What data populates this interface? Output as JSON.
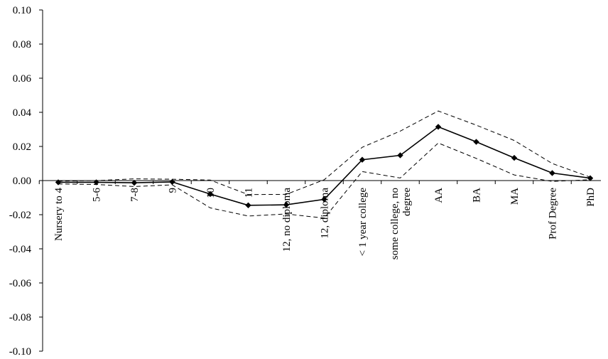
{
  "chart_data": {
    "type": "line",
    "title": "",
    "xlabel": "",
    "ylabel": "",
    "ylim": [
      -0.1,
      0.1
    ],
    "y_ticks": [
      "0.10",
      "0.08",
      "0.06",
      "0.04",
      "0.02",
      "0.00",
      "-0.02",
      "-0.04",
      "-0.06",
      "-0.08",
      "-0.10"
    ],
    "y_tick_values": [
      0.1,
      0.08,
      0.06,
      0.04,
      0.02,
      0.0,
      -0.02,
      -0.04,
      -0.06,
      -0.08,
      -0.1
    ],
    "categories": [
      "Nursery to 4",
      "5-6",
      "7-8",
      "9",
      "10",
      "11",
      "12, no diploma",
      "12, diploma",
      "< 1 year college",
      "some college, no degree",
      "AA",
      "BA",
      "MA",
      "Prof Degree",
      "PhD"
    ],
    "series": [
      {
        "style": "solid-with-diamonds",
        "color": "#000000",
        "values": [
          -0.001,
          -0.001,
          -0.0013,
          -0.0008,
          -0.0079,
          -0.0145,
          -0.0142,
          -0.011,
          0.0122,
          0.0148,
          0.0315,
          0.0227,
          0.0133,
          0.0044,
          0.0014
        ]
      },
      {
        "style": "dashed",
        "color": "#000000",
        "values": [
          -0.0003,
          0.0,
          0.001,
          0.0008,
          0.0003,
          -0.0082,
          -0.0081,
          0.0005,
          0.0195,
          0.029,
          0.0408,
          0.0325,
          0.0235,
          0.01,
          0.002
        ]
      },
      {
        "style": "dashed",
        "color": "#000000",
        "values": [
          -0.002,
          -0.0023,
          -0.0035,
          -0.0025,
          -0.016,
          -0.0208,
          -0.0196,
          -0.022,
          0.0053,
          0.0015,
          0.022,
          0.013,
          0.0033,
          -0.0005,
          0.0005
        ]
      }
    ],
    "grid": false,
    "legend": "none"
  }
}
